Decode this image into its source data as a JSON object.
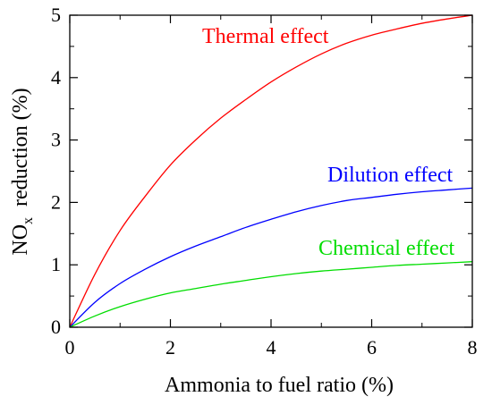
{
  "chart_data": {
    "type": "line",
    "title": "",
    "xlabel": "Ammonia to fuel ratio (%)",
    "ylabel": {
      "prefix": "NO",
      "subscript": "x",
      "suffix": "  reduction (%)"
    },
    "xlim": [
      0,
      8
    ],
    "ylim": [
      0,
      5
    ],
    "xticks": [
      "0",
      "2",
      "4",
      "6",
      "8"
    ],
    "yticks": [
      "0",
      "1",
      "2",
      "3",
      "4",
      "5"
    ],
    "grid": false,
    "legend": "inline labels",
    "series": [
      {
        "name": "Thermal effect",
        "color": "#ff0000",
        "x": [
          0,
          0.5,
          1,
          1.5,
          2,
          2.5,
          3,
          3.5,
          4,
          4.5,
          5,
          5.5,
          6,
          6.5,
          7,
          7.5,
          8
        ],
        "y": [
          0,
          0.85,
          1.55,
          2.1,
          2.6,
          3.0,
          3.35,
          3.65,
          3.93,
          4.17,
          4.38,
          4.55,
          4.68,
          4.78,
          4.87,
          4.94,
          5.0
        ]
      },
      {
        "name": "Dilution effect",
        "color": "#0000ff",
        "x": [
          0,
          0.5,
          1,
          1.5,
          2,
          2.5,
          3,
          3.5,
          4,
          4.5,
          5,
          5.5,
          6,
          6.5,
          7,
          7.5,
          8
        ],
        "y": [
          0,
          0.4,
          0.7,
          0.93,
          1.13,
          1.3,
          1.45,
          1.6,
          1.73,
          1.85,
          1.95,
          2.03,
          2.08,
          2.13,
          2.17,
          2.2,
          2.23
        ]
      },
      {
        "name": "Chemical effect",
        "color": "#00dd00",
        "x": [
          0,
          0.5,
          1,
          1.5,
          2,
          2.5,
          3,
          3.5,
          4,
          4.5,
          5,
          5.5,
          6,
          6.5,
          7,
          7.5,
          8
        ],
        "y": [
          0,
          0.18,
          0.33,
          0.45,
          0.55,
          0.62,
          0.69,
          0.75,
          0.81,
          0.86,
          0.9,
          0.93,
          0.96,
          0.99,
          1.01,
          1.03,
          1.05
        ]
      }
    ]
  }
}
